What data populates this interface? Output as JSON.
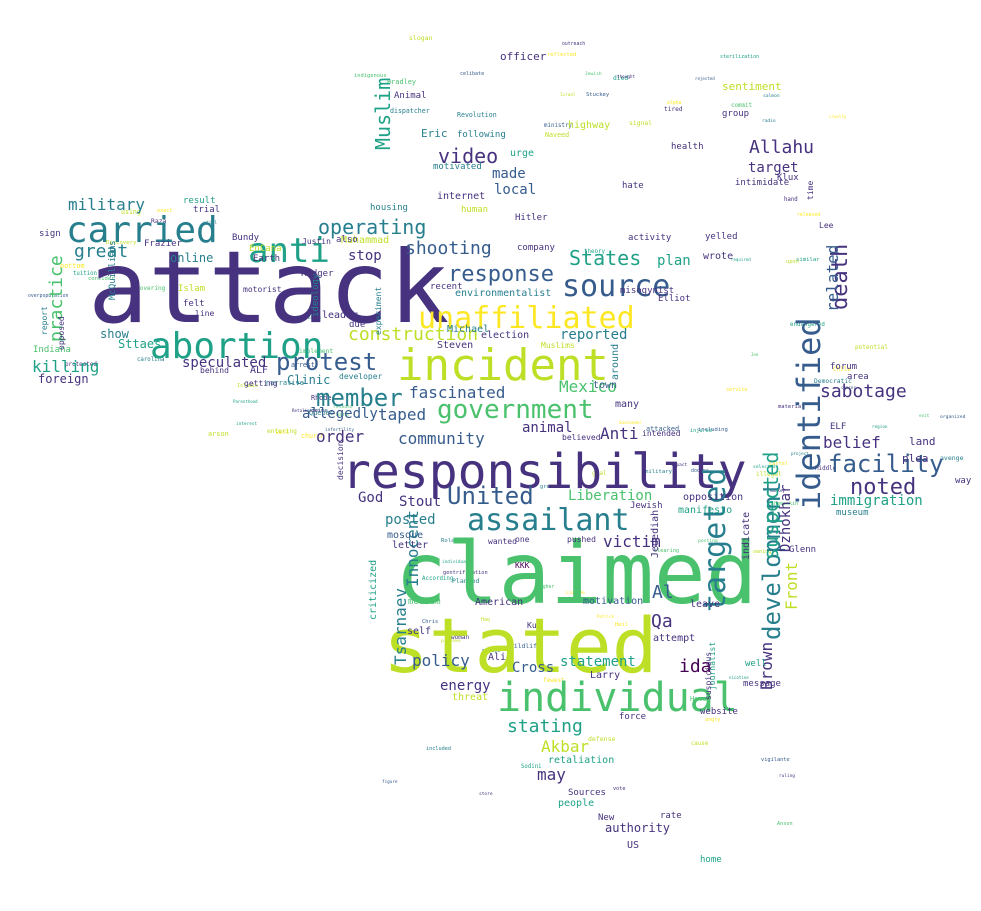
{
  "palette": {
    "dark_purple": "#46327e",
    "deep_purple": "#440154",
    "blue": "#365c8d",
    "teal": "#277f8e",
    "green_teal": "#1fa187",
    "green": "#4ac16d",
    "lime": "#a0da39",
    "yellow_green": "#bddf26",
    "yellow": "#fde725"
  },
  "words": [
    {
      "text": "attack"
    },
    {
      "text": "claimed"
    },
    {
      "text": "stated"
    },
    {
      "text": "responsibility"
    },
    {
      "text": "incident"
    },
    {
      "text": "individual"
    },
    {
      "text": "abortion"
    },
    {
      "text": "carried"
    },
    {
      "text": "unaffiliated"
    },
    {
      "text": "identified"
    },
    {
      "text": "anti"
    },
    {
      "text": "source"
    },
    {
      "text": "government"
    },
    {
      "text": "assailant"
    },
    {
      "text": "targeted"
    },
    {
      "text": "facility"
    },
    {
      "text": "United"
    },
    {
      "text": "protest"
    },
    {
      "text": "member"
    },
    {
      "text": "response"
    },
    {
      "text": "development"
    },
    {
      "text": "suspected"
    },
    {
      "text": "death"
    },
    {
      "text": "video"
    },
    {
      "text": "noted"
    },
    {
      "text": "operating"
    },
    {
      "text": "States"
    },
    {
      "text": "shooting"
    },
    {
      "text": "Muslim"
    },
    {
      "text": "Allahu"
    },
    {
      "text": "military"
    },
    {
      "text": "practice"
    },
    {
      "text": "killing"
    },
    {
      "text": "great"
    },
    {
      "text": "related"
    },
    {
      "text": "sabotage"
    },
    {
      "text": "fascinated"
    },
    {
      "text": "construction"
    },
    {
      "text": "Mexico"
    },
    {
      "text": "community"
    },
    {
      "text": "order"
    },
    {
      "text": "taped"
    },
    {
      "text": "allegedly"
    },
    {
      "text": "speculated"
    },
    {
      "text": "Liberation"
    },
    {
      "text": "policy"
    },
    {
      "text": "statement"
    },
    {
      "text": "stating"
    },
    {
      "text": "Akbar"
    },
    {
      "text": "may"
    },
    {
      "text": "victim"
    },
    {
      "text": "Innocent"
    },
    {
      "text": "Tsarnaev"
    },
    {
      "text": "Brown"
    },
    {
      "text": "Front"
    },
    {
      "text": "Dzhokhar"
    },
    {
      "text": "belief"
    },
    {
      "text": "immigration"
    },
    {
      "text": "Anti"
    },
    {
      "text": "animal"
    },
    {
      "text": "reported"
    },
    {
      "text": "Cross"
    },
    {
      "text": "energy"
    },
    {
      "text": "ida"
    },
    {
      "text": "Qa"
    },
    {
      "text": "Al"
    },
    {
      "text": "posted"
    },
    {
      "text": "God"
    },
    {
      "text": "Stout"
    },
    {
      "text": "made"
    },
    {
      "text": "local"
    },
    {
      "text": "plan"
    },
    {
      "text": "target"
    },
    {
      "text": "stop"
    },
    {
      "text": "Clinic"
    },
    {
      "text": "foreign"
    },
    {
      "text": "show"
    },
    {
      "text": "online"
    },
    {
      "text": "Sttaes"
    },
    {
      "text": "Muhammad"
    },
    {
      "text": "Eric"
    },
    {
      "text": "urge"
    },
    {
      "text": "internet"
    },
    {
      "text": "leader"
    },
    {
      "text": "election"
    },
    {
      "text": "Steven"
    },
    {
      "text": "environmentalist"
    },
    {
      "text": "Michael"
    },
    {
      "text": "around"
    },
    {
      "text": "town"
    },
    {
      "text": "many"
    },
    {
      "text": "Jewish"
    },
    {
      "text": "manifesto"
    },
    {
      "text": "opposition"
    },
    {
      "text": "museum"
    },
    {
      "text": "indicate"
    },
    {
      "text": "Glenn"
    },
    {
      "text": "Jedediah"
    },
    {
      "text": "leave"
    },
    {
      "text": "attempt"
    },
    {
      "text": "motivation"
    },
    {
      "text": "American"
    },
    {
      "text": "self"
    },
    {
      "text": "mosque"
    },
    {
      "text": "letter"
    },
    {
      "text": "criticized"
    },
    {
      "text": "Larry"
    },
    {
      "text": "Ali"
    },
    {
      "text": "threat"
    },
    {
      "text": "retaliation"
    },
    {
      "text": "Sources"
    },
    {
      "text": "people"
    },
    {
      "text": "authority"
    },
    {
      "text": "US"
    },
    {
      "text": "rate"
    },
    {
      "text": "home"
    },
    {
      "text": "website"
    },
    {
      "text": "journalist"
    },
    {
      "text": "suspicious"
    },
    {
      "text": "force"
    },
    {
      "text": "well"
    },
    {
      "text": "message"
    },
    {
      "text": "land"
    },
    {
      "text": "plea"
    },
    {
      "text": "forum"
    },
    {
      "text": "area"
    },
    {
      "text": "ELF"
    },
    {
      "text": "way"
    },
    {
      "text": "sentiment"
    },
    {
      "text": "officer"
    },
    {
      "text": "highway"
    },
    {
      "text": "Animal"
    },
    {
      "text": "following"
    },
    {
      "text": "motivated"
    },
    {
      "text": "human"
    },
    {
      "text": "Hitler"
    },
    {
      "text": "company"
    },
    {
      "text": "activity"
    },
    {
      "text": "yelled"
    },
    {
      "text": "wrote"
    },
    {
      "text": "intimidate"
    },
    {
      "text": "hate"
    },
    {
      "text": "health"
    },
    {
      "text": "group"
    },
    {
      "text": "Klux"
    },
    {
      "text": "Elliot"
    },
    {
      "text": "misogynist"
    },
    {
      "text": "recent"
    },
    {
      "text": "Islam"
    },
    {
      "text": "felt"
    },
    {
      "text": "line"
    },
    {
      "text": "ALF"
    },
    {
      "text": "behind"
    },
    {
      "text": "Indiana"
    },
    {
      "text": "opposed"
    },
    {
      "text": "report"
    },
    {
      "text": "sign"
    },
    {
      "text": "McQuilliams"
    },
    {
      "text": "Frazier"
    },
    {
      "text": "trial"
    },
    {
      "text": "result"
    },
    {
      "text": "Bundy"
    },
    {
      "text": "EnCana"
    },
    {
      "text": "Earth"
    },
    {
      "text": "motorist"
    },
    {
      "text": "Rodger"
    },
    {
      "text": "Justin"
    },
    {
      "text": "housing"
    },
    {
      "text": "also"
    },
    {
      "text": "ideology"
    },
    {
      "text": "experiment"
    },
    {
      "text": "due"
    },
    {
      "text": "developer"
    },
    {
      "text": "getting"
    },
    {
      "text": "Muslims"
    },
    {
      "text": "believed"
    },
    {
      "text": "intended"
    },
    {
      "text": "decision"
    },
    {
      "text": "Ku"
    },
    {
      "text": "KKK"
    },
    {
      "text": "pushed"
    },
    {
      "text": "medium"
    },
    {
      "text": "New"
    },
    {
      "text": "time"
    },
    {
      "text": "Lee"
    },
    {
      "text": "wanted"
    },
    {
      "text": "one"
    }
  ]
}
